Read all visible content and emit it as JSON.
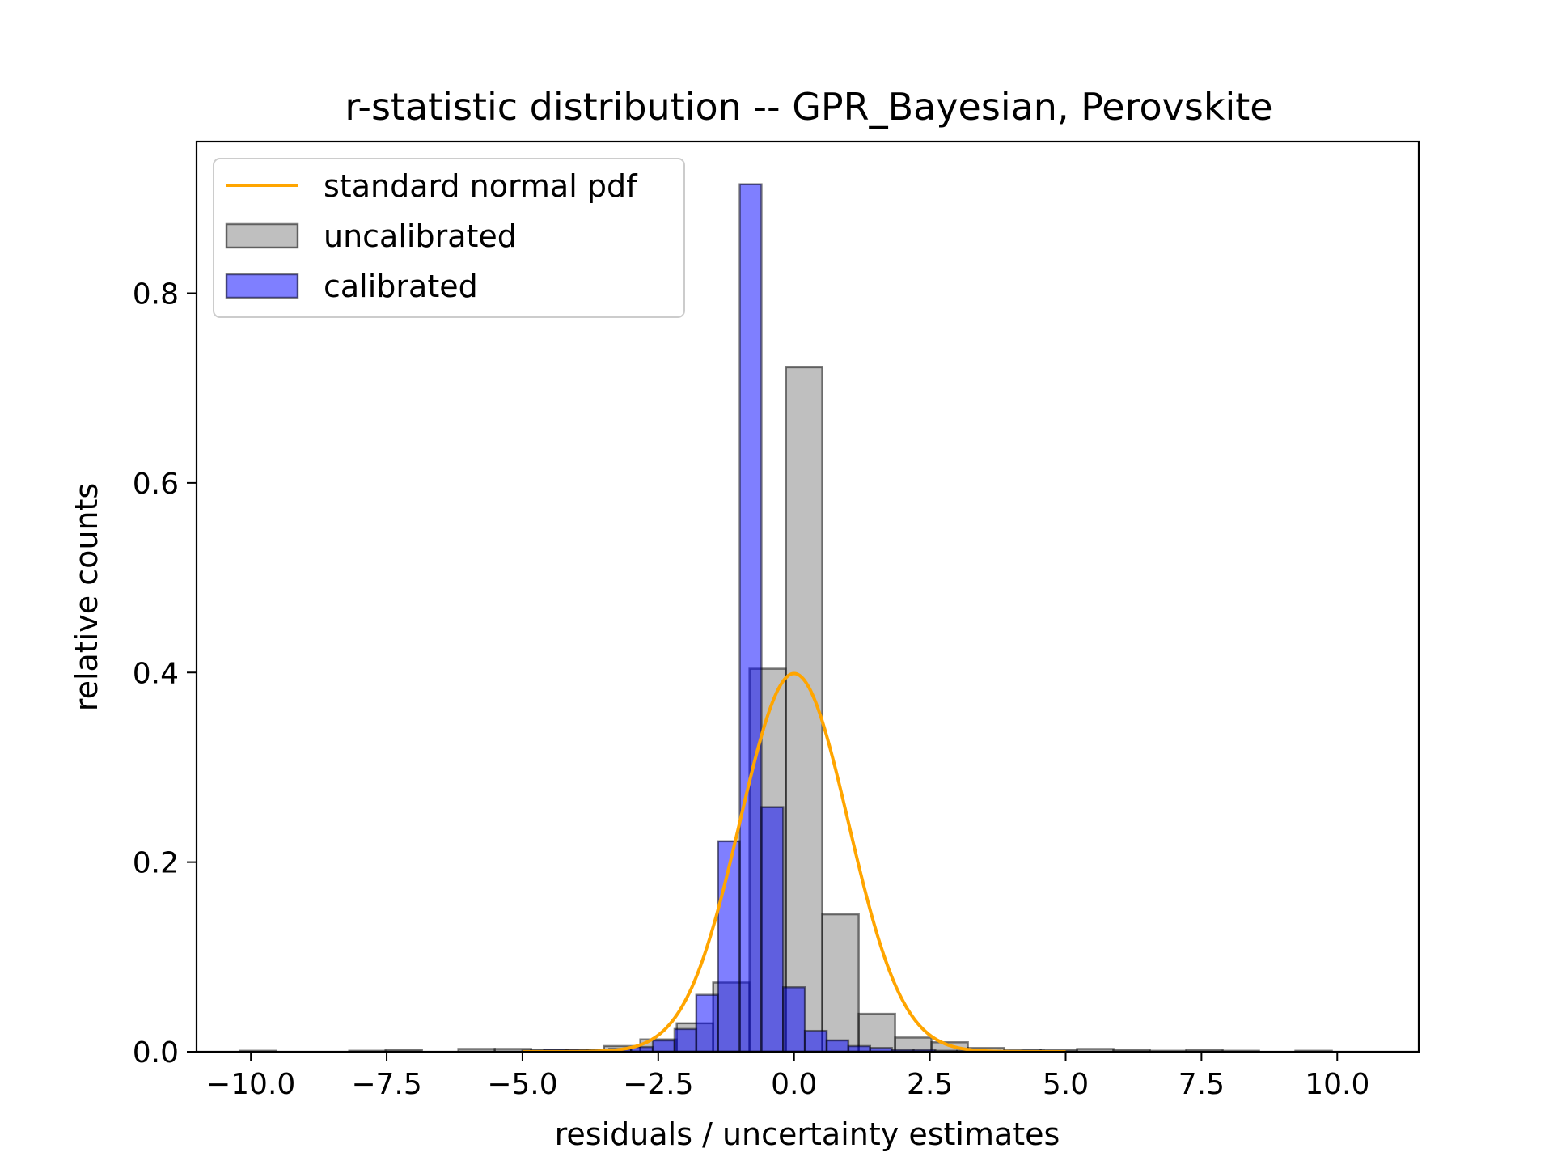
{
  "chart_data": {
    "type": "bar",
    "title": "r-statistic distribution -- GPR_Bayesian, Perovskite",
    "xlabel": "residuals / uncertainty estimates",
    "ylabel": "relative counts",
    "xlim": [
      -11.0,
      11.5
    ],
    "ylim": [
      0.0,
      0.96
    ],
    "xticks": [
      -10.0,
      -7.5,
      -5.0,
      -2.5,
      0.0,
      2.5,
      5.0,
      7.5,
      10.0
    ],
    "xtick_labels": [
      "−10.0",
      "−7.5",
      "−5.0",
      "−2.5",
      "0.0",
      "2.5",
      "5.0",
      "7.5",
      "10.0"
    ],
    "yticks": [
      0.0,
      0.2,
      0.4,
      0.6,
      0.8
    ],
    "ytick_labels": [
      "0.0",
      "0.2",
      "0.4",
      "0.6",
      "0.8"
    ],
    "grid": false,
    "legend_position": "top-left",
    "legend": [
      {
        "label": "standard normal pdf",
        "kind": "line",
        "color": "#ffa500"
      },
      {
        "label": "uncalibrated",
        "kind": "patch",
        "color": "#808080"
      },
      {
        "label": "calibrated",
        "kind": "patch",
        "color": "#0000ff"
      }
    ],
    "series": [
      {
        "name": "uncalibrated",
        "kind": "histogram",
        "color": "#808080",
        "alpha": 0.5,
        "bin_edges": [
          -10.2,
          -9.53,
          -8.86,
          -8.19,
          -7.52,
          -6.85,
          -6.18,
          -5.51,
          -4.84,
          -4.17,
          -3.5,
          -2.83,
          -2.16,
          -1.49,
          -0.82,
          -0.15,
          0.52,
          1.19,
          1.86,
          2.53,
          3.2,
          3.87,
          4.54,
          5.21,
          5.88,
          6.55,
          7.22,
          7.89,
          8.56,
          9.23,
          9.9
        ],
        "values": [
          0.001,
          0.0,
          0.0,
          0.001,
          0.002,
          0.0,
          0.003,
          0.003,
          0.002,
          0.002,
          0.006,
          0.013,
          0.03,
          0.073,
          0.404,
          0.722,
          0.145,
          0.04,
          0.015,
          0.01,
          0.004,
          0.002,
          0.002,
          0.003,
          0.002,
          0.001,
          0.002,
          0.001,
          0.0,
          0.001
        ]
      },
      {
        "name": "calibrated",
        "kind": "histogram",
        "color": "#0000ff",
        "alpha": 0.5,
        "bin_edges": [
          -5.0,
          -4.6,
          -4.2,
          -3.8,
          -3.4,
          -3.0,
          -2.6,
          -2.2,
          -1.8,
          -1.4,
          -1.0,
          -0.6,
          -0.2,
          0.2,
          0.6,
          1.0,
          1.4,
          1.8,
          2.2,
          2.6,
          3.0,
          3.4,
          3.8,
          4.2,
          4.6,
          5.0
        ],
        "values": [
          0.001,
          0.002,
          0.002,
          0.002,
          0.003,
          0.005,
          0.012,
          0.024,
          0.06,
          0.222,
          0.915,
          0.258,
          0.068,
          0.022,
          0.012,
          0.006,
          0.004,
          0.002,
          0.002,
          0.001,
          0.001,
          0.001,
          0.0,
          0.001,
          0.0
        ]
      },
      {
        "name": "standard normal pdf",
        "kind": "line",
        "color": "#ffa500",
        "function": "standard normal pdf",
        "x_range": [
          -5.0,
          5.0
        ]
      }
    ]
  }
}
